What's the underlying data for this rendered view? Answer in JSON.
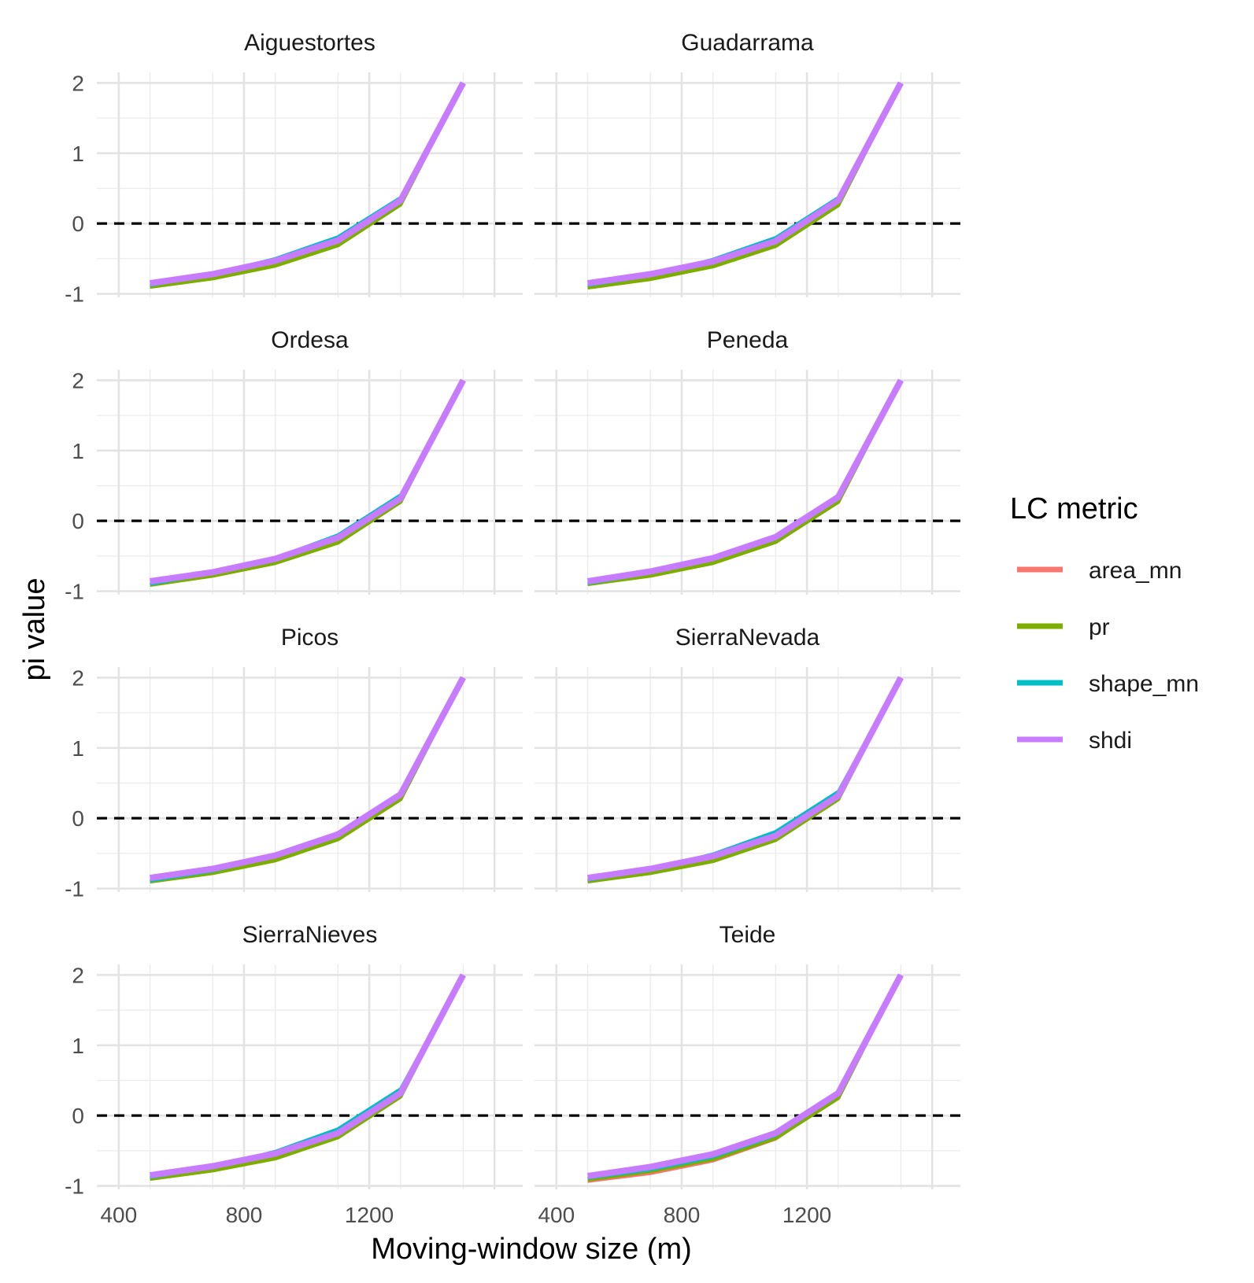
{
  "chart_data": {
    "type": "line",
    "xlabel": "Moving-window size (m)",
    "ylabel": "pi value",
    "x_ticks": [
      400,
      800,
      1200
    ],
    "y_ticks": [
      -1,
      0,
      1,
      2
    ],
    "xlim": [
      330,
      1690
    ],
    "ylim": [
      -1.05,
      2.15
    ],
    "reference_line": 0,
    "legend": {
      "title": "LC metric",
      "placement": "right",
      "entries": [
        {
          "name": "area_mn",
          "color": "#F8766D"
        },
        {
          "name": "pr",
          "color": "#7CAE00"
        },
        {
          "name": "shape_mn",
          "color": "#00BFC4"
        },
        {
          "name": "shdi",
          "color": "#C77CFF"
        }
      ]
    },
    "x": [
      500,
      700,
      900,
      1100,
      1300,
      1500
    ],
    "panels": [
      {
        "title": "Aiguestortes",
        "series": [
          {
            "name": "area_mn",
            "values": [
              -0.9,
              -0.78,
              -0.6,
              -0.31,
              0.28,
              2.0
            ]
          },
          {
            "name": "pr",
            "values": [
              -0.9,
              -0.78,
              -0.6,
              -0.31,
              0.27,
              2.0
            ]
          },
          {
            "name": "shape_mn",
            "values": [
              -0.88,
              -0.72,
              -0.5,
              -0.19,
              0.37,
              2.0
            ]
          },
          {
            "name": "shdi",
            "values": [
              -0.85,
              -0.72,
              -0.53,
              -0.24,
              0.33,
              2.0
            ]
          }
        ]
      },
      {
        "title": "Guadarrama",
        "series": [
          {
            "name": "area_mn",
            "values": [
              -0.92,
              -0.8,
              -0.61,
              -0.32,
              0.27,
              2.0
            ]
          },
          {
            "name": "pr",
            "values": [
              -0.91,
              -0.79,
              -0.61,
              -0.32,
              0.26,
              2.0
            ]
          },
          {
            "name": "shape_mn",
            "values": [
              -0.88,
              -0.74,
              -0.51,
              -0.2,
              0.37,
              2.0
            ]
          },
          {
            "name": "shdi",
            "values": [
              -0.85,
              -0.72,
              -0.54,
              -0.25,
              0.33,
              2.0
            ]
          }
        ]
      },
      {
        "title": "Ordesa",
        "series": [
          {
            "name": "area_mn",
            "values": [
              -0.91,
              -0.78,
              -0.6,
              -0.31,
              0.28,
              2.0
            ]
          },
          {
            "name": "pr",
            "values": [
              -0.91,
              -0.78,
              -0.6,
              -0.31,
              0.27,
              2.0
            ]
          },
          {
            "name": "shape_mn",
            "values": [
              -0.9,
              -0.74,
              -0.53,
              -0.2,
              0.37,
              2.0
            ]
          },
          {
            "name": "shdi",
            "values": [
              -0.86,
              -0.73,
              -0.54,
              -0.24,
              0.32,
              2.0
            ]
          }
        ]
      },
      {
        "title": "Peneda",
        "series": [
          {
            "name": "area_mn",
            "values": [
              -0.9,
              -0.78,
              -0.6,
              -0.3,
              0.28,
              2.0
            ]
          },
          {
            "name": "pr",
            "values": [
              -0.9,
              -0.78,
              -0.6,
              -0.3,
              0.27,
              2.0
            ]
          },
          {
            "name": "shape_mn",
            "values": [
              -0.89,
              -0.74,
              -0.53,
              -0.22,
              0.35,
              2.0
            ]
          },
          {
            "name": "shdi",
            "values": [
              -0.86,
              -0.72,
              -0.53,
              -0.23,
              0.34,
              2.0
            ]
          }
        ]
      },
      {
        "title": "Picos",
        "series": [
          {
            "name": "area_mn",
            "values": [
              -0.9,
              -0.78,
              -0.6,
              -0.3,
              0.28,
              2.0
            ]
          },
          {
            "name": "pr",
            "values": [
              -0.9,
              -0.78,
              -0.6,
              -0.3,
              0.27,
              2.0
            ]
          },
          {
            "name": "shape_mn",
            "values": [
              -0.89,
              -0.75,
              -0.54,
              -0.22,
              0.34,
              2.0
            ]
          },
          {
            "name": "shdi",
            "values": [
              -0.85,
              -0.72,
              -0.53,
              -0.23,
              0.34,
              2.0
            ]
          }
        ]
      },
      {
        "title": "SierraNevada",
        "series": [
          {
            "name": "area_mn",
            "values": [
              -0.9,
              -0.78,
              -0.61,
              -0.31,
              0.28,
              2.0
            ]
          },
          {
            "name": "pr",
            "values": [
              -0.9,
              -0.78,
              -0.61,
              -0.31,
              0.27,
              2.0
            ]
          },
          {
            "name": "shape_mn",
            "values": [
              -0.88,
              -0.73,
              -0.51,
              -0.19,
              0.38,
              2.0
            ]
          },
          {
            "name": "shdi",
            "values": [
              -0.85,
              -0.72,
              -0.54,
              -0.25,
              0.32,
              2.0
            ]
          }
        ]
      },
      {
        "title": "SierraNieves",
        "series": [
          {
            "name": "area_mn",
            "values": [
              -0.9,
              -0.78,
              -0.61,
              -0.31,
              0.28,
              2.0
            ]
          },
          {
            "name": "pr",
            "values": [
              -0.9,
              -0.78,
              -0.61,
              -0.31,
              0.27,
              2.0
            ]
          },
          {
            "name": "shape_mn",
            "values": [
              -0.88,
              -0.73,
              -0.51,
              -0.19,
              0.38,
              2.0
            ]
          },
          {
            "name": "shdi",
            "values": [
              -0.85,
              -0.72,
              -0.54,
              -0.25,
              0.32,
              2.0
            ]
          }
        ]
      },
      {
        "title": "Teide",
        "series": [
          {
            "name": "area_mn",
            "values": [
              -0.94,
              -0.83,
              -0.65,
              -0.34,
              0.25,
              2.0
            ]
          },
          {
            "name": "pr",
            "values": [
              -0.91,
              -0.79,
              -0.62,
              -0.32,
              0.25,
              2.0
            ]
          },
          {
            "name": "shape_mn",
            "values": [
              -0.89,
              -0.77,
              -0.59,
              -0.28,
              0.3,
              2.0
            ]
          },
          {
            "name": "shdi",
            "values": [
              -0.86,
              -0.73,
              -0.55,
              -0.25,
              0.32,
              2.0
            ]
          }
        ]
      }
    ]
  }
}
